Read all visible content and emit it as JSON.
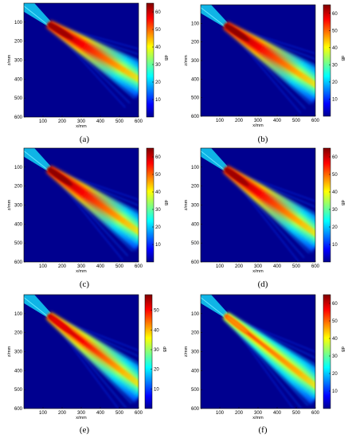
{
  "chart_data": [
    {
      "type": "heatmap",
      "panel_label": "(a)",
      "xlabel": "x/mm",
      "ylabel": "z/mm",
      "colorbar_label": "dB",
      "xticks": [
        100,
        200,
        300,
        400,
        500,
        600
      ],
      "yticks": [
        100,
        200,
        300,
        400,
        500,
        600
      ],
      "colorbar_ticks": [
        10,
        20,
        30,
        40,
        50,
        60
      ],
      "xlim": [
        0,
        600
      ],
      "ylim": [
        0,
        600
      ],
      "clim": [
        0,
        65
      ],
      "colormap": "jet",
      "beam": {
        "origin_x": 130,
        "origin_z": 110,
        "end_x": 600,
        "end_z": 400,
        "peak_db": 63
      }
    },
    {
      "type": "heatmap",
      "panel_label": "(b)",
      "xlabel": "x/mm",
      "ylabel": "z/mm",
      "colorbar_label": "dB",
      "xticks": [
        100,
        200,
        300,
        400,
        500,
        600
      ],
      "yticks": [
        100,
        200,
        300,
        400,
        500,
        600
      ],
      "colorbar_ticks": [
        10,
        20,
        30,
        40,
        50,
        60
      ],
      "xlim": [
        0,
        600
      ],
      "ylim": [
        0,
        600
      ],
      "clim": [
        0,
        65
      ],
      "colormap": "jet",
      "beam": {
        "origin_x": 130,
        "origin_z": 110,
        "end_x": 600,
        "end_z": 430,
        "peak_db": 64
      }
    },
    {
      "type": "heatmap",
      "panel_label": "(c)",
      "xlabel": "x/mm",
      "ylabel": "z/mm",
      "colorbar_label": "dB",
      "xticks": [
        100,
        200,
        300,
        400,
        500,
        600
      ],
      "yticks": [
        100,
        200,
        300,
        400,
        500,
        600
      ],
      "colorbar_ticks": [
        10,
        20,
        30,
        40,
        50,
        60
      ],
      "xlim": [
        0,
        600
      ],
      "ylim": [
        0,
        600
      ],
      "clim": [
        0,
        65
      ],
      "colormap": "jet",
      "beam": {
        "origin_x": 130,
        "origin_z": 110,
        "end_x": 600,
        "end_z": 440,
        "peak_db": 64
      }
    },
    {
      "type": "heatmap",
      "panel_label": "(d)",
      "xlabel": "x/mm",
      "ylabel": "z/mm",
      "colorbar_label": "dB",
      "xticks": [
        100,
        200,
        300,
        400,
        500,
        600
      ],
      "yticks": [
        100,
        200,
        300,
        400,
        500,
        600
      ],
      "colorbar_ticks": [
        10,
        20,
        30,
        40,
        50,
        60
      ],
      "xlim": [
        0,
        600
      ],
      "ylim": [
        0,
        600
      ],
      "clim": [
        0,
        65
      ],
      "colormap": "jet",
      "beam": {
        "origin_x": 130,
        "origin_z": 110,
        "end_x": 600,
        "end_z": 450,
        "peak_db": 63
      }
    },
    {
      "type": "heatmap",
      "panel_label": "(e)",
      "xlabel": "x/mm",
      "ylabel": "z/mm",
      "colorbar_label": "dB",
      "xticks": [
        100,
        200,
        300,
        400,
        500,
        600
      ],
      "yticks": [
        100,
        200,
        300,
        400,
        500,
        600
      ],
      "colorbar_ticks": [
        10,
        20,
        30,
        40,
        50
      ],
      "xlim": [
        0,
        600
      ],
      "ylim": [
        0,
        600
      ],
      "clim": [
        0,
        58
      ],
      "colormap": "jet",
      "beam": {
        "origin_x": 130,
        "origin_z": 110,
        "end_x": 600,
        "end_z": 470,
        "peak_db": 52
      }
    },
    {
      "type": "heatmap",
      "panel_label": "(f)",
      "xlabel": "x/mm",
      "ylabel": "z/mm",
      "colorbar_label": "dB",
      "xticks": [
        100,
        200,
        300,
        400,
        500,
        600
      ],
      "yticks": [
        100,
        200,
        300,
        400,
        500,
        600
      ],
      "colorbar_ticks": [
        10,
        20,
        30,
        40,
        50,
        60
      ],
      "xlim": [
        0,
        600
      ],
      "ylim": [
        0,
        600
      ],
      "clim": [
        0,
        65
      ],
      "colormap": "jet",
      "beam": {
        "origin_x": 130,
        "origin_z": 110,
        "end_x": 600,
        "end_z": 480,
        "peak_db": 48
      }
    }
  ]
}
